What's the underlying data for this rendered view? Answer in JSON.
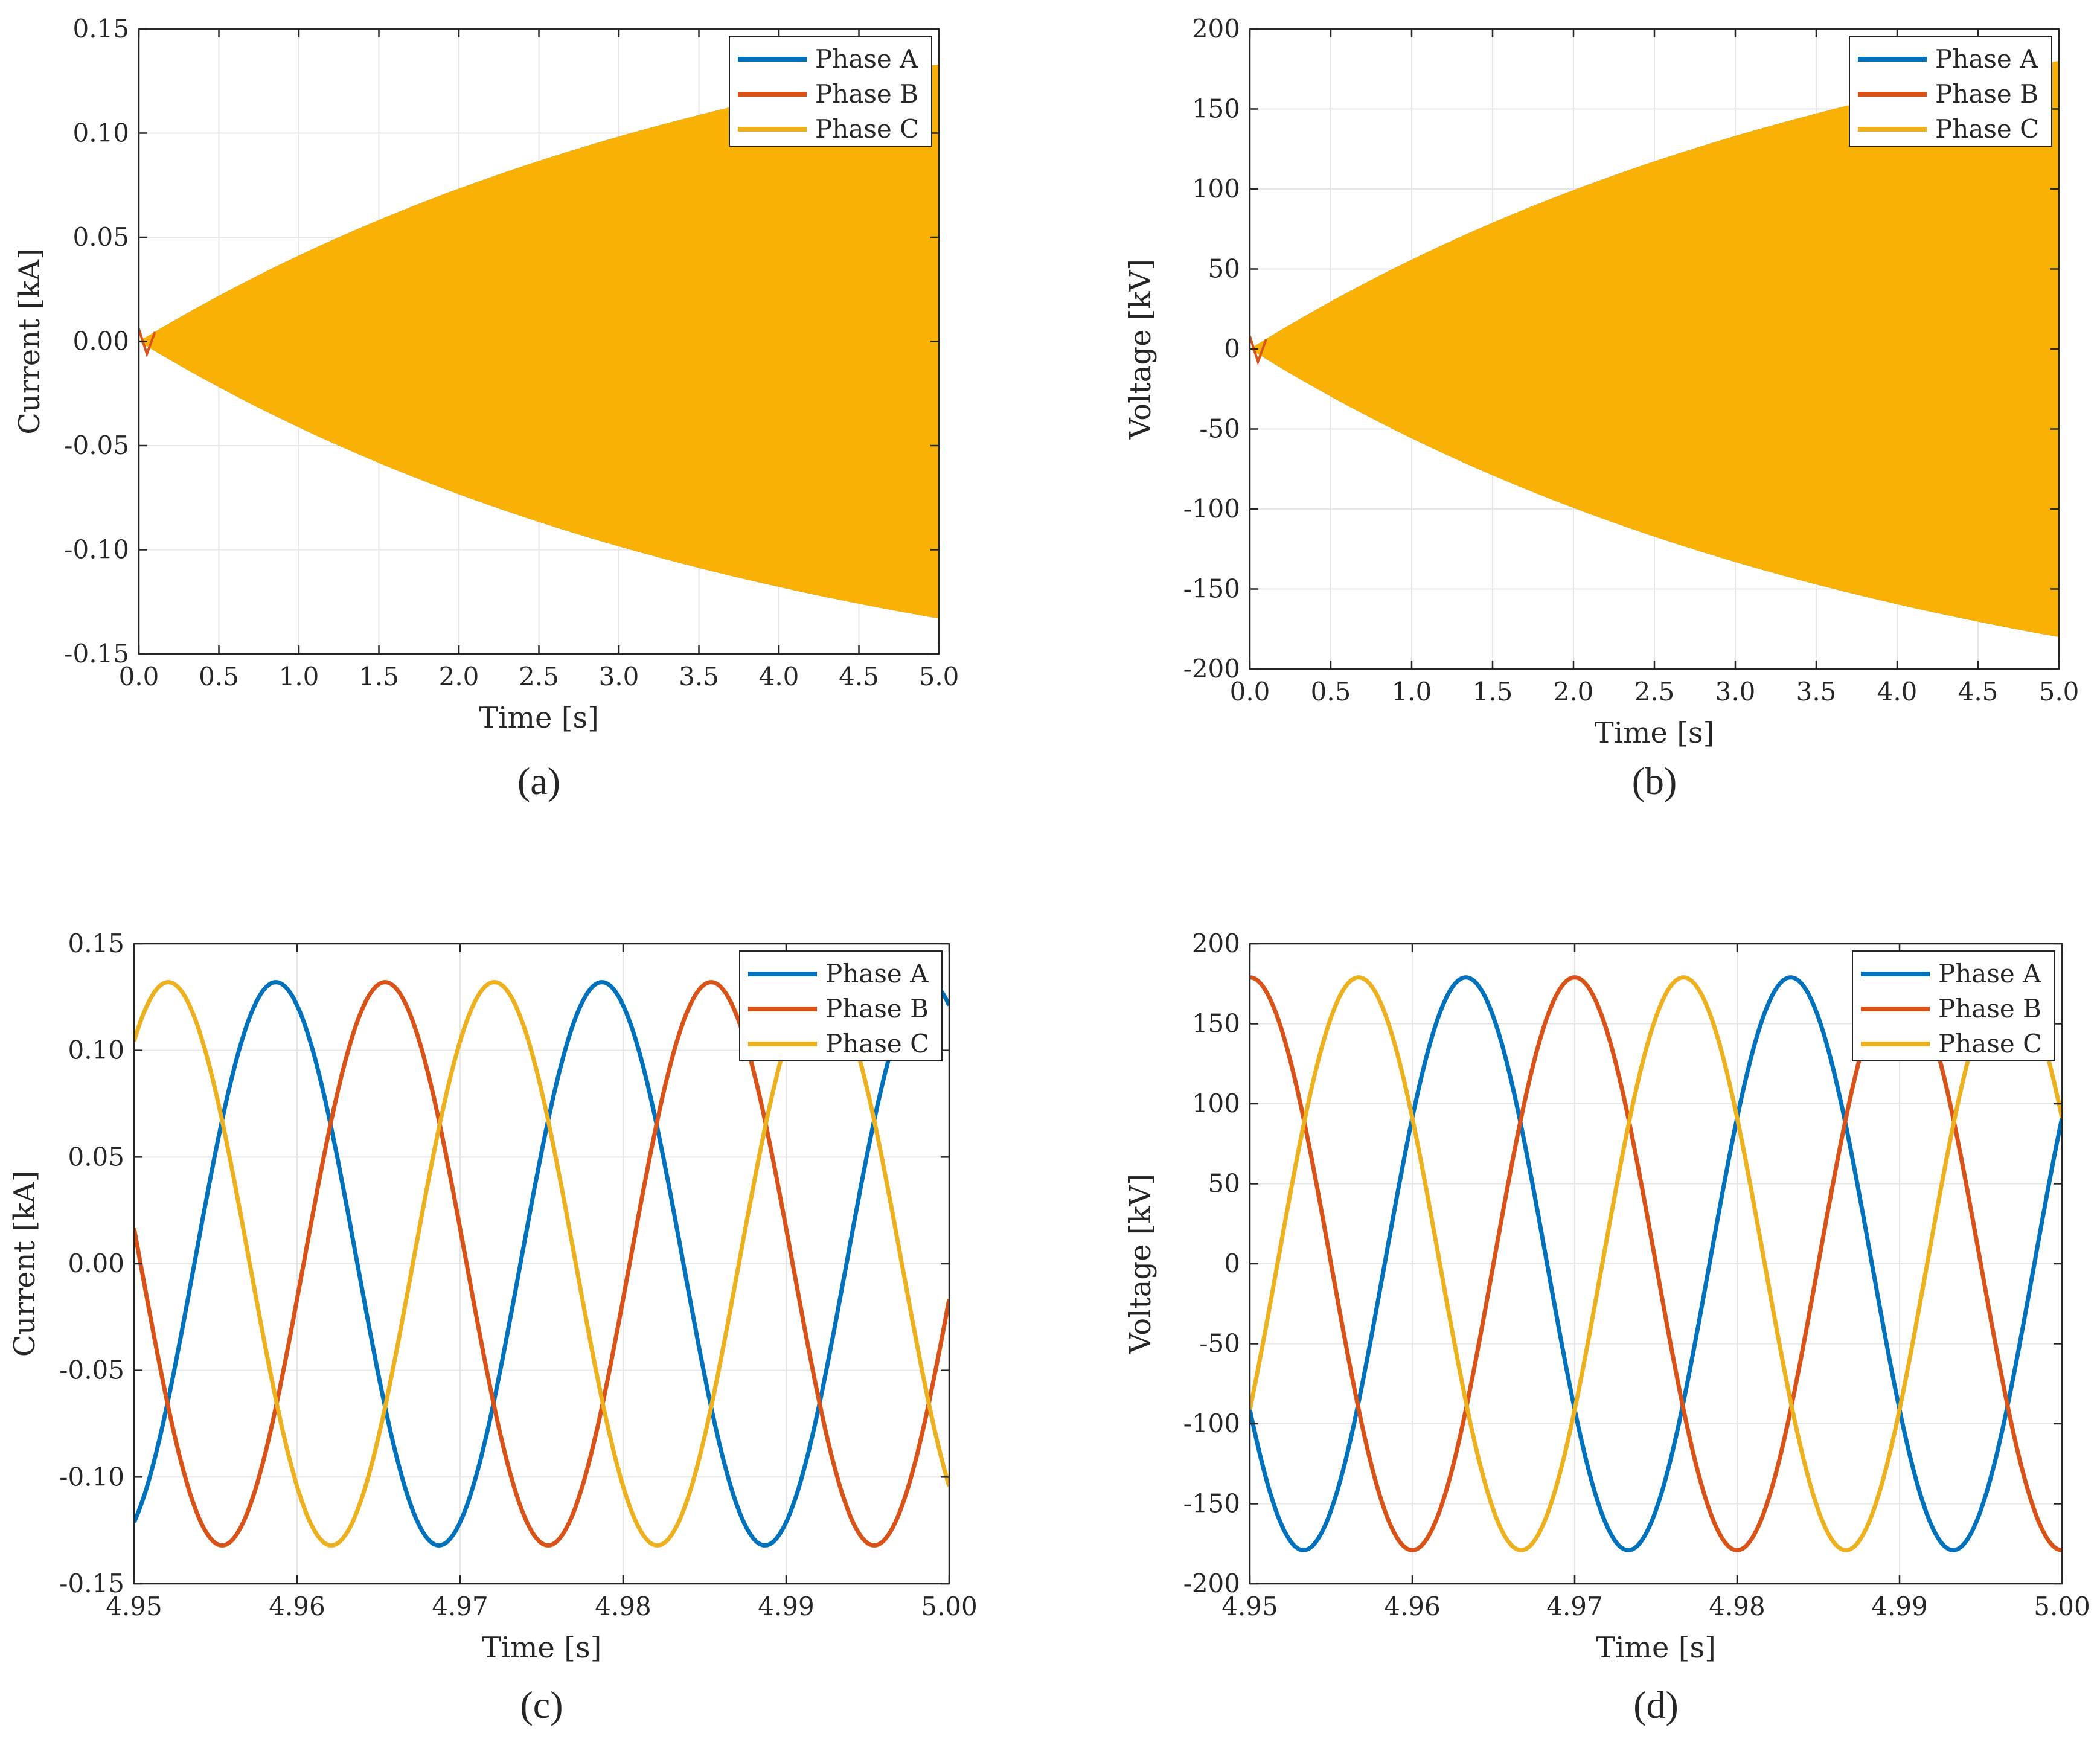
{
  "colors": {
    "phase_a": "#0072BD",
    "phase_b": "#D95319",
    "phase_c": "#EDB120",
    "envelope": "#F9B106"
  },
  "chart_data": [
    {
      "id": "a",
      "type": "line",
      "panel_label": "(a)",
      "title": "",
      "xlabel": "Time [s]",
      "ylabel": "Current [kA]",
      "xlim": [
        0,
        5
      ],
      "ylim": [
        -0.15,
        0.15
      ],
      "xticks": [
        "0.0",
        "0.5",
        "1.0",
        "1.5",
        "2.0",
        "2.5",
        "3.0",
        "3.5",
        "4.0",
        "4.5",
        "5.0"
      ],
      "yticks": [
        "-0.15",
        "-0.10",
        "-0.05",
        "0.00",
        "0.05",
        "0.10",
        "0.15"
      ],
      "grid": true,
      "legend": {
        "position": "top-right",
        "entries": [
          "Phase A",
          "Phase B",
          "Phase C"
        ]
      },
      "envelope": {
        "start_time": 0.0,
        "start_amplitude": 0.0,
        "end_time": 5.0,
        "end_amplitude": 0.133,
        "time_constant": 4.0
      },
      "series": [
        {
          "name": "Phase A",
          "note": "dense 50 Hz oscillation within envelope"
        },
        {
          "name": "Phase B",
          "note": "dense 50 Hz oscillation within envelope"
        },
        {
          "name": "Phase C",
          "note": "dense 50 Hz oscillation within envelope"
        }
      ]
    },
    {
      "id": "b",
      "type": "line",
      "panel_label": "(b)",
      "title": "",
      "xlabel": "Time [s]",
      "ylabel": "Voltage [kV]",
      "xlim": [
        0,
        5
      ],
      "ylim": [
        -200,
        200
      ],
      "xticks": [
        "0.0",
        "0.5",
        "1.0",
        "1.5",
        "2.0",
        "2.5",
        "3.0",
        "3.5",
        "4.0",
        "4.5",
        "5.0"
      ],
      "yticks": [
        "-200",
        "-150",
        "-100",
        "-50",
        "0",
        "50",
        "100",
        "150",
        "200"
      ],
      "grid": true,
      "legend": {
        "position": "top-right",
        "entries": [
          "Phase A",
          "Phase B",
          "Phase C"
        ]
      },
      "envelope": {
        "start_time": 0.0,
        "start_amplitude": 0.0,
        "end_time": 5.0,
        "end_amplitude": 180,
        "time_constant": 4.0
      },
      "series": [
        {
          "name": "Phase A",
          "note": "dense 50 Hz oscillation within envelope"
        },
        {
          "name": "Phase B",
          "note": "dense 50 Hz oscillation within envelope"
        },
        {
          "name": "Phase C",
          "note": "dense 50 Hz oscillation within envelope"
        }
      ]
    },
    {
      "id": "c",
      "type": "line",
      "panel_label": "(c)",
      "title": "",
      "xlabel": "Time [s]",
      "ylabel": "Current [kA]",
      "xlim": [
        4.95,
        5.0
      ],
      "ylim": [
        -0.15,
        0.15
      ],
      "xticks": [
        "4.95",
        "4.96",
        "4.97",
        "4.98",
        "4.99",
        "5.00"
      ],
      "yticks": [
        "-0.15",
        "-0.10",
        "-0.05",
        "0.00",
        "0.05",
        "0.10",
        "0.15"
      ],
      "grid": true,
      "legend": {
        "position": "top-right",
        "entries": [
          "Phase A",
          "Phase B",
          "Phase C"
        ]
      },
      "series": [
        {
          "name": "Phase A",
          "amplitude": 0.132,
          "frequency_hz": 50,
          "peak_time": 4.9587
        },
        {
          "name": "Phase B",
          "amplitude": 0.132,
          "frequency_hz": 50,
          "peak_time": 4.9654
        },
        {
          "name": "Phase C",
          "amplitude": 0.132,
          "frequency_hz": 50,
          "peak_time": 4.9521
        }
      ]
    },
    {
      "id": "d",
      "type": "line",
      "panel_label": "(d)",
      "title": "",
      "xlabel": "Time [s]",
      "ylabel": "Voltage [kV]",
      "xlim": [
        4.95,
        5.0
      ],
      "ylim": [
        -200,
        200
      ],
      "xticks": [
        "4.95",
        "4.96",
        "4.97",
        "4.98",
        "4.99",
        "5.00"
      ],
      "yticks": [
        "-200",
        "-150",
        "-100",
        "-50",
        "0",
        "50",
        "100",
        "150",
        "200"
      ],
      "grid": true,
      "legend": {
        "position": "top-right",
        "entries": [
          "Phase A",
          "Phase B",
          "Phase C"
        ]
      },
      "series": [
        {
          "name": "Phase A",
          "amplitude": 179,
          "frequency_hz": 50,
          "peak_time": 4.9633
        },
        {
          "name": "Phase B",
          "amplitude": 179,
          "frequency_hz": 50,
          "peak_time": 4.97
        },
        {
          "name": "Phase C",
          "amplitude": 179,
          "frequency_hz": 50,
          "peak_time": 4.9567
        }
      ]
    }
  ]
}
